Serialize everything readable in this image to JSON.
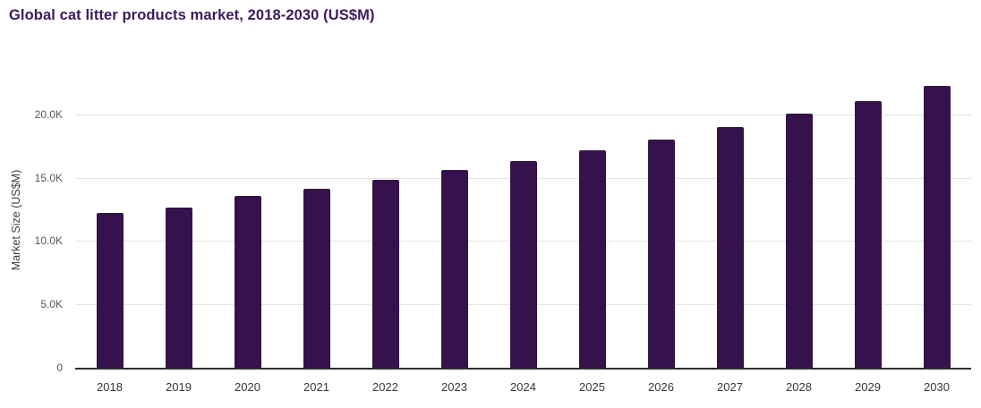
{
  "title": {
    "text": "Global cat litter products market, 2018-2030 (US$M)"
  },
  "chart_data": {
    "type": "bar",
    "title": "Global cat litter products market, 2018-2030 (US$M)",
    "categories": [
      "2018",
      "2019",
      "2020",
      "2021",
      "2022",
      "2023",
      "2024",
      "2025",
      "2026",
      "2027",
      "2028",
      "2029",
      "2030"
    ],
    "values": [
      12200,
      12650,
      13550,
      14150,
      14850,
      15600,
      16300,
      17150,
      18000,
      19000,
      20050,
      21050,
      22250
    ],
    "series_name": "Market Size",
    "xlabel": "",
    "ylabel": "Market Size (US$M)",
    "ylim": [
      0,
      24800
    ],
    "yticks": [
      {
        "value": 0,
        "label": "0"
      },
      {
        "value": 5000,
        "label": "5.0K"
      },
      {
        "value": 10000,
        "label": "10.0K"
      },
      {
        "value": 15000,
        "label": "15.0K"
      },
      {
        "value": 20000,
        "label": "20.0K"
      }
    ],
    "grid": "horizontal",
    "legend_position": "none",
    "style": {
      "bar_color": "#35124b",
      "title_color": "#3b1b5e",
      "grid_color": "#e4e4e4",
      "axis_line_color": "#2f2f2f",
      "ytick_color": "#595959",
      "xtick_color": "#383838",
      "ylabel_color": "#3d3d3d"
    }
  }
}
